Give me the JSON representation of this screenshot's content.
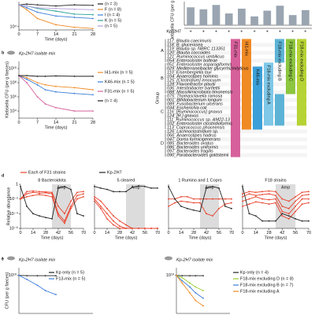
{
  "chart_data": [
    {
      "type": "line",
      "log": true,
      "xlabel": "Time (days)",
      "x": [
        0,
        3,
        7,
        14,
        21,
        28
      ],
      "xlim": [
        0,
        28
      ],
      "xticks": [
        0,
        7,
        14,
        21,
        28
      ],
      "ylim": [
        3000,
        100000000
      ],
      "yticks": [
        {
          "value": 10000,
          "label": "10⁴"
        }
      ],
      "series": [
        {
          "name": "(n = 3)",
          "color": "#222222",
          "values": [
            30000000,
            40000000,
            30000000,
            20000000,
            30000000,
            25000000
          ]
        },
        {
          "name": "F (n = 8)",
          "color": "#f08a24",
          "values": [
            30000000,
            5000000,
            200000,
            20000,
            8000,
            5000
          ]
        },
        {
          "name": "I (n = 4)",
          "color": "#3b7dd8",
          "values": [
            30000000,
            10000000,
            2000000,
            500000,
            300000,
            200000
          ]
        },
        {
          "name": "K (n = 5)",
          "color": "#2aa198",
          "values": [
            30000000,
            20000000,
            8000000,
            3000000,
            1000000,
            800000
          ]
        },
        {
          "name": "(n = 5)",
          "color": "#b39ddb",
          "values": [
            30000000,
            20000000,
            10000000,
            8000000,
            6000000,
            5000000
          ]
        }
      ]
    },
    {
      "type": "bar",
      "log": true,
      "ylabel": "Klebsiella CFU (per g faeces)",
      "row_label": "Kp-2H7",
      "color": "#9aa5b1",
      "categories": [
        "+",
        "+",
        "+",
        "+",
        "+",
        "+",
        "+",
        "+",
        "+",
        "+"
      ],
      "values": [
        200000000,
        50000000,
        1000000000,
        3000000,
        80000000,
        400000,
        20000000,
        600000000,
        1000000,
        30000000
      ],
      "ylim": [
        1000,
        10000000000
      ]
    },
    {
      "type": "line",
      "log": true,
      "panel": "b",
      "annotation": "Kp-2H7 isolate mix",
      "ylabel": "Klebsiella CFU (per g faeces)",
      "xlabel": "Time (days)",
      "x": [
        0,
        3,
        7,
        10,
        14,
        21,
        28
      ],
      "xlim": [
        0,
        28
      ],
      "xticks": [
        0,
        7,
        14,
        21,
        28
      ],
      "ylim": [
        1000,
        100000000000
      ],
      "yticks": [
        {
          "value": 10000,
          "label": "10⁴"
        },
        {
          "value": 1000000,
          "label": "10⁶"
        },
        {
          "value": 100000000,
          "label": "10⁸"
        },
        {
          "value": 10000000000,
          "label": "10¹⁰"
        }
      ],
      "series": [
        {
          "name": "I41-mix (n = 5)",
          "color": "#f08a24",
          "values": [
            1000000000,
            500000000,
            100000000,
            50000000,
            30000000,
            20000000,
            10000000
          ]
        },
        {
          "name": "K46-mix (n = 5)",
          "color": "#3b7dd8",
          "values": [
            1000000000,
            300000000,
            50000000,
            10000000,
            5000000,
            3000000,
            2000000
          ]
        },
        {
          "name": "F31-mix (n = 5)",
          "color": "#d6609b",
          "values": [
            1000000000,
            100000000,
            1000000,
            100000,
            30000,
            10000,
            10000
          ]
        },
        {
          "name": "(n = 4)",
          "color": "#222222",
          "values": [
            1000000000,
            1000000000,
            800000000,
            800000000,
            900000000,
            800000000,
            800000000
          ]
        }
      ]
    },
    {
      "type": "line",
      "log": true,
      "panel": "d",
      "title": "8 Bacteroidota",
      "ylabel": "Relative abundance",
      "xlabel": "Time (days)",
      "x": [
        0,
        7,
        14,
        21,
        28,
        35,
        42,
        49,
        56,
        63,
        70
      ],
      "xlim": [
        0,
        70
      ],
      "xticks": [
        0,
        14,
        28,
        42,
        56,
        70
      ],
      "ylim": [
        1e-06,
        1
      ],
      "yticks": [
        {
          "value": 1e-06,
          "label": "10⁻⁶"
        },
        {
          "value": 0.0001,
          "label": "10⁻⁴"
        },
        {
          "value": 0.01,
          "label": "10⁻²"
        },
        1
      ],
      "shade": {
        "range": [
          35,
          56
        ],
        "label": "Amp"
      },
      "series": [
        {
          "color": "#e8402a",
          "values": [
            0.01,
            0.05,
            0.08,
            0.06,
            0.07,
            0.05,
            0.0001,
            1e-05,
            0.001,
            0.03,
            0.05
          ]
        },
        {
          "color": "#e8402a",
          "values": [
            0.01,
            0.02,
            0.03,
            0.04,
            0.03,
            0.02,
            5e-05,
            5e-06,
            0.0005,
            0.01,
            0.02
          ]
        },
        {
          "color": "#e8402a",
          "values": [
            0.01,
            0.1,
            0.12,
            0.1,
            0.09,
            0.08,
            0.001,
            0.0001,
            0.005,
            0.08,
            0.1
          ]
        },
        {
          "color": "#222222",
          "values": [
            0.5,
            0.001,
            0.0001,
            5e-05,
            3e-05,
            2e-05,
            0.3,
            0.5,
            0.2,
            0.0001,
            5e-05
          ]
        }
      ]
    },
    {
      "type": "line",
      "log": true,
      "title": "5 cleared",
      "xlabel": "Time (days)",
      "x": [
        0,
        7,
        14,
        21,
        28,
        35,
        42,
        49,
        56,
        63,
        70
      ],
      "xlim": [
        0,
        70
      ],
      "xticks": [
        0,
        14,
        28,
        42,
        56,
        70
      ],
      "ylim": [
        1e-06,
        1
      ],
      "shade": {
        "range": [
          35,
          56
        ],
        "label": "Amp"
      },
      "series": [
        {
          "color": "#e8402a",
          "values": [
            0.01,
            0.001,
            0.0001,
            1e-05,
            2e-06,
            1e-06,
            1e-06,
            1e-06,
            1e-06,
            1e-06,
            1e-06
          ]
        },
        {
          "color": "#e8402a",
          "values": [
            0.02,
            0.005,
            0.0005,
            5e-05,
            1e-05,
            3e-06,
            1e-06,
            1e-06,
            1e-06,
            1e-06,
            1e-06
          ]
        },
        {
          "color": "#e8402a",
          "values": [
            0.005,
            0.0005,
            2e-05,
            3e-06,
            1e-06,
            1e-06,
            1e-06,
            1e-06,
            1e-06,
            1e-06,
            1e-06
          ]
        },
        {
          "color": "#222222",
          "values": [
            0.5,
            0.3,
            0.2,
            0.1,
            0.1,
            0.1,
            0.4,
            0.6,
            0.5,
            0.3,
            0.3
          ]
        }
      ]
    },
    {
      "type": "line",
      "log": true,
      "title": "1 Rumino and 1 Copro",
      "xlabel": "Time (days)",
      "x": [
        0,
        7,
        14,
        21,
        28,
        35,
        42,
        49,
        56,
        63,
        70
      ],
      "xlim": [
        0,
        70
      ],
      "xticks": [
        0,
        14,
        28,
        42,
        56,
        70
      ],
      "ylim": [
        1e-06,
        1
      ],
      "shade": {
        "range": [
          35,
          56
        ],
        "label": "Amp"
      },
      "series": [
        {
          "color": "#e8402a",
          "values": [
            0.01,
            0.01,
            0.02,
            0.02,
            0.01,
            0.01,
            0.01,
            0.01,
            0.01,
            0.01,
            0.01
          ]
        },
        {
          "color": "#e8402a",
          "values": [
            0.001,
            0.003,
            0.005,
            0.004,
            0.003,
            0.003,
            0.0001,
            5e-05,
            0.0005,
            0.002,
            0.003
          ]
        },
        {
          "color": "#222222",
          "values": [
            0.5,
            0.01,
            0.001,
            0.0005,
            0.0003,
            0.0002,
            0.3,
            0.5,
            0.3,
            0.001,
            0.0005
          ]
        }
      ]
    },
    {
      "type": "line",
      "log": true,
      "title": "F18 strains",
      "xlabel": "Time (days)",
      "x": [
        0,
        7,
        14,
        21,
        28,
        35,
        42,
        49,
        56,
        63,
        70
      ],
      "xlim": [
        0,
        70
      ],
      "xticks": [
        0,
        14,
        28,
        42,
        56,
        70
      ],
      "ylim": [
        1e-06,
        1
      ],
      "shade": {
        "range": [
          35,
          56
        ],
        "label": "Amp"
      },
      "series": [
        {
          "color": "#e8402a",
          "values": [
            0.02,
            0.05,
            0.03,
            0.04,
            0.05,
            0.03,
            0.001,
            0.0005,
            0.005,
            0.03,
            0.04
          ]
        },
        {
          "color": "#e8402a",
          "values": [
            0.005,
            0.01,
            0.02,
            0.01,
            0.008,
            0.01,
            0.0002,
            0.0001,
            0.001,
            0.01,
            0.01
          ]
        },
        {
          "color": "#e8402a",
          "values": [
            0.05,
            0.1,
            0.08,
            0.1,
            0.12,
            0.1,
            0.01,
            0.005,
            0.02,
            0.08,
            0.1
          ]
        },
        {
          "color": "#e8402a",
          "values": [
            0.001,
            0.002,
            0.004,
            0.003,
            0.002,
            0.003,
            5e-05,
            2e-05,
            0.0002,
            0.002,
            0.003
          ]
        },
        {
          "color": "#222222",
          "values": [
            0.5,
            0.0001,
            5e-05,
            1e-05,
            1e-05,
            1e-05,
            0.0001,
            5e-05,
            2e-05,
            1e-05,
            1e-05
          ]
        }
      ]
    },
    {
      "type": "line",
      "log": true,
      "panel": "e",
      "annotation": "Kp-2H7 isolate mix",
      "ylabel": "CFU (per g faeces)",
      "x": [
        0,
        3,
        7,
        10,
        14
      ],
      "xlim": [
        0,
        28
      ],
      "ylim": [
        100000,
        100000000000
      ],
      "yticks": [
        {
          "value": 10000000000,
          "label": "10¹⁰"
        }
      ],
      "series": [
        {
          "name": "Kp only (n = 5)",
          "color": "#222222",
          "values": [
            10000000000,
            9000000000,
            9000000000,
            9000000000,
            9000000000
          ]
        },
        {
          "name": "F13-mix (n = 5)",
          "color": "#3b7dd8",
          "values": [
            10000000000,
            3000000000,
            500000000,
            100000000,
            30000000
          ]
        }
      ]
    },
    {
      "type": "line",
      "log": true,
      "panel": "f",
      "annotation": "Kp-2H7 isolate mix",
      "x": [
        0,
        3,
        7,
        10,
        14
      ],
      "xlim": [
        0,
        28
      ],
      "ylim": [
        100000,
        100000000000
      ],
      "yticks": [
        {
          "value": 10000000000,
          "label": "10¹⁰"
        }
      ],
      "series": [
        {
          "name": "Kp only (n = 4)",
          "color": "#222222",
          "values": [
            10000000000,
            9000000000,
            9000000000,
            9000000000,
            9000000000
          ]
        },
        {
          "name": "F18-mix excluding D (n = 8)",
          "color": "#9acd32",
          "values": [
            10000000000,
            5000000000,
            1000000000,
            300000000,
            100000000
          ]
        },
        {
          "name": "F18-mix excluding B (n = 7)",
          "color": "#3b7dd8",
          "values": [
            10000000000,
            2000000000,
            300000000,
            50000000,
            10000000
          ]
        },
        {
          "name": "F18-mix excluding A",
          "color": "#f08a24",
          "values": [
            10000000000,
            1000000000,
            50000000,
            5000000,
            1000000
          ]
        }
      ]
    }
  ],
  "panel_d_legend": [
    {
      "name": "Each of F31 strains",
      "color": "#e8402a"
    },
    {
      "name": "Kp-2H7",
      "color": "#222222"
    }
  ],
  "species_table": {
    "header": "Group",
    "groups": [
      {
        "label": "A",
        "span": [
          0,
          5
        ]
      },
      {
        "label": "B",
        "span": [
          6,
          13
        ]
      },
      {
        "label": "C",
        "span": [
          14,
          22
        ]
      },
      {
        "label": "D",
        "span": [
          23,
          29
        ]
      }
    ],
    "species": [
      "117_Blautia caecimuris",
      "118_B. glucerasea",
      "119_Blautia sp. NBRC 113351",
      "120_Blautia coccoides",
      "121_Ruminococcus umbilicus",
      "054_Enterocloster bolteae",
      "051_Enterocloster asparagiformis",
      "029_Mediterraneibacter glycyrrhizinilyticus",
      "110_Eisenbergiella tayi",
      "104_Anaerostipes hominis",
      "125_[Clostridium] innocuum",
      "128_Flavonifractor plautii",
      "036_Intestinibacter bartlettii",
      "088_Massiliimicrobiota timonensis",
      "075_Thomasclavelia ramosa",
      "001_Bifidobacterium longum",
      "089_Fusobacterium ulcerans",
      "034_Escherichia coli",
      "116_[Ruminococcus] gnavus",
      "124_[R.] gnavus",
      "111_Ruminococcus sp. AM22-13",
      "102_Enterocloster clostridioformis",
      "113_Coprococcus phoceensis",
      "126_Lachnoclostridium sp.",
      "066_Anaerostipes hadrus",
      "047_Dorea formicigenerans",
      "085_Bacteroides ovatus",
      "086_Bacteroides uniformis",
      "097_Bacteroides fragilis",
      "090_Parabacteroides goldsteinii"
    ],
    "columns": [
      {
        "label": "F31-mix",
        "color": "#d6609b",
        "spans": [
          [
            0,
            29
          ]
        ]
      },
      {
        "label": "I41-mix",
        "color": "#f08a24",
        "spans": [
          [
            0,
            22
          ]
        ]
      },
      {
        "label": "K46-mix",
        "color": "#3b9fd8",
        "spans": [
          [
            7,
            22
          ]
        ]
      },
      {
        "label": "F18-mix excluding A",
        "color": "#7fc8e8",
        "spans": [
          [
            6,
            21
          ]
        ]
      },
      {
        "label": "F18-mix excluding B",
        "color": "#5db3d6",
        "spans": [
          [
            0,
            5
          ],
          [
            14,
            21
          ]
        ]
      },
      {
        "label": "F18-mix excluding C",
        "color": "#8cc63f",
        "spans": [
          [
            0,
            13
          ]
        ]
      },
      {
        "label": "F18-mix excluding D",
        "color": "#b5d334",
        "spans": [
          [
            0,
            21
          ]
        ]
      }
    ]
  }
}
